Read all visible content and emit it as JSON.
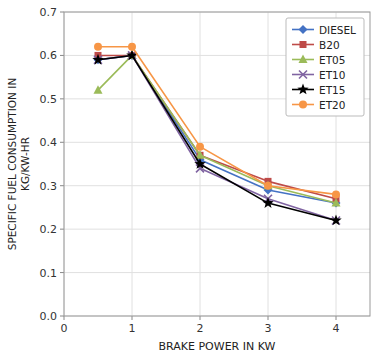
{
  "chart_data": {
    "type": "line",
    "xlabel": "BRAKE POWER IN KW",
    "ylabel": "SPECIFIC FUEL CONSUMPTION IN\nKG/KW-HR",
    "x": [
      0.5,
      1.0,
      2.0,
      3.0,
      4.0
    ],
    "series": [
      {
        "name": "DIESEL",
        "color": "#4472C4",
        "marker": "diamond",
        "values": [
          0.59,
          0.6,
          0.36,
          0.29,
          0.26
        ]
      },
      {
        "name": "B20",
        "color": "#BE4B48",
        "marker": "square",
        "values": [
          0.6,
          0.6,
          0.37,
          0.31,
          0.27
        ]
      },
      {
        "name": "ET05",
        "color": "#9BBB59",
        "marker": "triangle",
        "values": [
          0.52,
          0.6,
          0.37,
          0.3,
          0.26
        ]
      },
      {
        "name": "ET10",
        "color": "#8064A2",
        "marker": "x",
        "values": [
          0.59,
          0.6,
          0.34,
          0.27,
          0.22
        ]
      },
      {
        "name": "ET15",
        "color": "#000000",
        "marker": "star",
        "values": [
          0.59,
          0.6,
          0.35,
          0.26,
          0.22
        ]
      },
      {
        "name": "ET20",
        "color": "#F79646",
        "marker": "circle",
        "values": [
          0.62,
          0.62,
          0.39,
          0.3,
          0.28
        ]
      }
    ],
    "xlim": [
      0,
      4.5
    ],
    "xticks": [
      0,
      1,
      2,
      3,
      4
    ],
    "ylim": [
      0,
      0.7
    ],
    "yticks": [
      {
        "value": 0,
        "label": "0.0"
      },
      0.1,
      0.2,
      0.3,
      0.4,
      0.5,
      0.6,
      0.7
    ],
    "grid": true,
    "legend": "upper right"
  }
}
